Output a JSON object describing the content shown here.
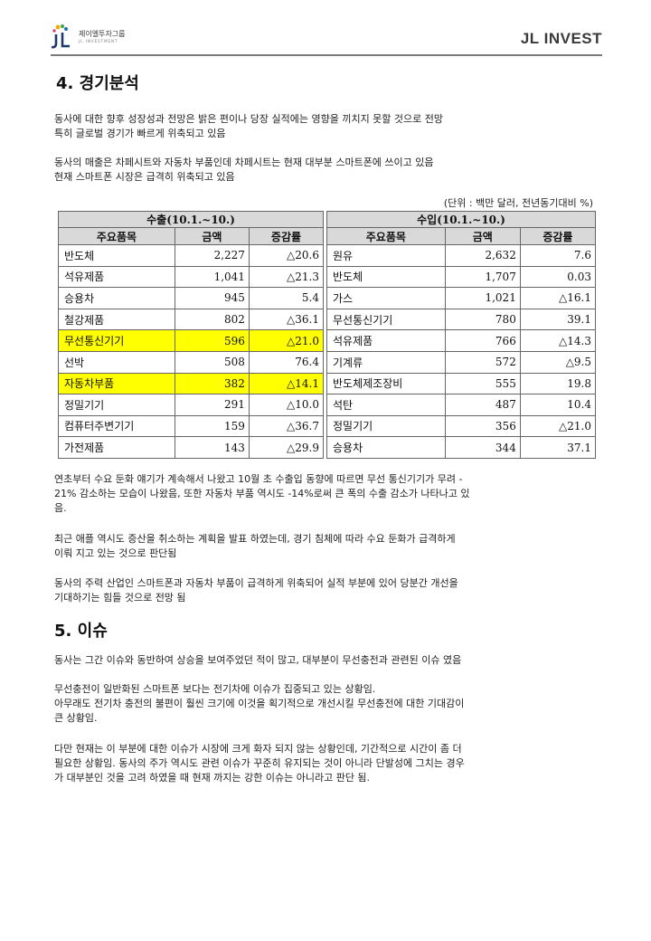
{
  "header": {
    "logo_kr": "제이엘투자그룹",
    "logo_en": "JL INVESTMENT",
    "brand": "JL INVEST"
  },
  "section4": {
    "title": "4. 경기분석",
    "para1": [
      "동사에 대한 향후 성장성과 전망은 밝은 편이나 당장 실적에는 영향을 끼치지 못할 것으로 전망",
      "특히 글로벌 경기가 빠르게 위축되고 있음"
    ],
    "para2": [
      "동사의 매출은 차페시트와 자동차 부품인데 차페시트는 현재 대부분 스마트폰에 쓰이고 있음",
      "현재 스마트폰 시장은 급격히 위축되고 있음"
    ],
    "unit": "(단위 : 백만 달러, 전년동기대비 %)"
  },
  "trade_table": {
    "export": {
      "caption": "수출(10.1.~10.)",
      "headers": [
        "주요품목",
        "금액",
        "증감률"
      ],
      "rows": [
        {
          "item": "반도체",
          "amount": "2,227",
          "change": "△20.6",
          "highlight": false
        },
        {
          "item": "석유제품",
          "amount": "1,041",
          "change": "△21.3",
          "highlight": false
        },
        {
          "item": "승용차",
          "amount": "945",
          "change": "5.4",
          "highlight": false
        },
        {
          "item": "철강제품",
          "amount": "802",
          "change": "△36.1",
          "highlight": false
        },
        {
          "item": "무선통신기기",
          "amount": "596",
          "change": "△21.0",
          "highlight": true
        },
        {
          "item": "선박",
          "amount": "508",
          "change": "76.4",
          "highlight": false
        },
        {
          "item": "자동차부품",
          "amount": "382",
          "change": "△14.1",
          "highlight": true
        },
        {
          "item": "정밀기기",
          "amount": "291",
          "change": "△10.0",
          "highlight": false
        },
        {
          "item": "컴퓨터주변기기",
          "amount": "159",
          "change": "△36.7",
          "highlight": false
        },
        {
          "item": "가전제품",
          "amount": "143",
          "change": "△29.9",
          "highlight": false
        }
      ]
    },
    "import": {
      "caption": "수입(10.1.~10.)",
      "headers": [
        "주요품목",
        "금액",
        "증감률"
      ],
      "rows": [
        {
          "item": "원유",
          "amount": "2,632",
          "change": "7.6"
        },
        {
          "item": "반도체",
          "amount": "1,707",
          "change": "0.03"
        },
        {
          "item": "가스",
          "amount": "1,021",
          "change": "△16.1"
        },
        {
          "item": "무선통신기기",
          "amount": "780",
          "change": "39.1"
        },
        {
          "item": "석유제품",
          "amount": "766",
          "change": "△14.3"
        },
        {
          "item": "기계류",
          "amount": "572",
          "change": "△9.5"
        },
        {
          "item": "반도체제조장비",
          "amount": "555",
          "change": "19.8"
        },
        {
          "item": "석탄",
          "amount": "487",
          "change": "10.4"
        },
        {
          "item": "정밀기기",
          "amount": "356",
          "change": "△21.0"
        },
        {
          "item": "승용차",
          "amount": "344",
          "change": "37.1"
        }
      ]
    },
    "highlight_color": "#ffff00"
  },
  "analysis": {
    "para1": [
      "연초부터 수요 둔화 얘기가 계속해서 나왔고 10월 초 수출입 동향에 따르면 무선 통신기기가 무려 -",
      "21% 감소하는 모습이 나왔음, 또한 자동차 부품 역시도 -14%로써 큰 폭의 수출 감소가 나타나고 있",
      "음."
    ],
    "para2": [
      "최근 애플 역시도 증산을 취소하는 계획을 발표 하였는데, 경기 침체에 따라 수요 둔화가 급격하게",
      "이뤄 지고 있는 것으로 판단됨"
    ],
    "para3": [
      "동사의 주력 산업인 스마트폰과 자동차 부품이 급격하게 위축되어 실적 부분에 있어 당분간 개선을",
      "기대하기는 힘들 것으로 전망 됨"
    ]
  },
  "section5": {
    "title": "5. 이슈",
    "para1": [
      "동사는 그간 이슈와 동반하여 상승을 보여주었던 적이 많고, 대부분이 무선충전과 관련된 이슈 였음"
    ],
    "para2": [
      "무선충전이 일반화된 스마트폰 보다는 전기차에 이슈가 집중되고 있는 상황임.",
      "아무래도 전기차 충전의 불편이 훨씬 크기에 이것을 획기적으로 개선시킬 무선충전에 대한 기대감이",
      "큰 상황임."
    ],
    "para3": [
      "다만 현재는 이 부분에 대한 이슈가 시장에 크게 화자 되지 않는 상황인데, 기간적으로 시간이 좀 더",
      "필요한 상황임. 동사의 주가 역시도 관련 이슈가 꾸준히 유지되는 것이 아니라 단발성에 그치는 경우",
      "가 대부분인 것을 고려 하였을 때 현재 까지는 강한 이슈는 아니라고 판단 됨."
    ]
  }
}
